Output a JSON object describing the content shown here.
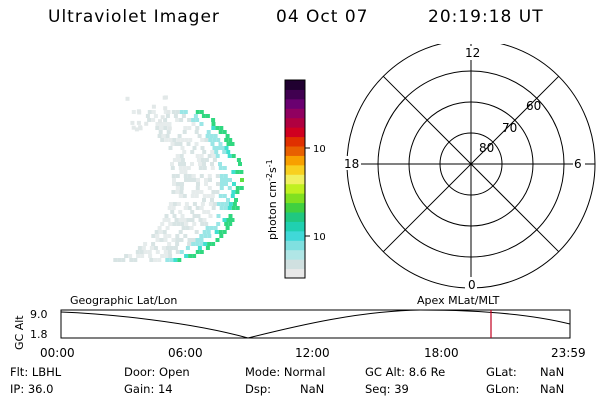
{
  "header": {
    "title": "Ultraviolet Imager",
    "date": "04 Oct 07",
    "time": "20:19:18 UT"
  },
  "colorbar": {
    "label_parts": [
      "photon cm",
      "-2",
      "s",
      "-1"
    ],
    "ticks": [
      "100",
      "10"
    ],
    "colors": [
      "#e8e8e8",
      "#d0e0e0",
      "#b0e6e6",
      "#80e0e0",
      "#40d8d8",
      "#20d0b0",
      "#20c880",
      "#40d040",
      "#80e020",
      "#c0f020",
      "#f0f060",
      "#f8d020",
      "#f8a000",
      "#e86000",
      "#e03000",
      "#d00020",
      "#b00040",
      "#900060",
      "#6a0070",
      "#400050",
      "#200030"
    ]
  },
  "polar": {
    "labels": {
      "top": "12",
      "bottom": "0",
      "left": "18",
      "right": "6"
    },
    "circle_labels": [
      "80",
      "70",
      "60"
    ]
  },
  "timeline": {
    "left_label": "Geographic Lat/Lon",
    "right_label": "Apex  MLat/MLT",
    "y_axis_label": "GC Alt",
    "y_ticks": [
      "9.0",
      "1.8"
    ],
    "x_ticks": [
      "00:00",
      "06:00",
      "12:00",
      "18:00",
      "23:59"
    ],
    "marker_time": "20:19"
  },
  "info": {
    "row1": [
      "Flt: LBHL",
      "Door: Open",
      "Mode: Normal",
      "GC Alt: 8.6 Re",
      "GLat:",
      "NaN"
    ],
    "row2": [
      "IP: 36.0",
      "Gain: 14",
      "Dsp:",
      "NaN",
      "Seq: 39",
      "GLon:",
      "NaN"
    ]
  }
}
